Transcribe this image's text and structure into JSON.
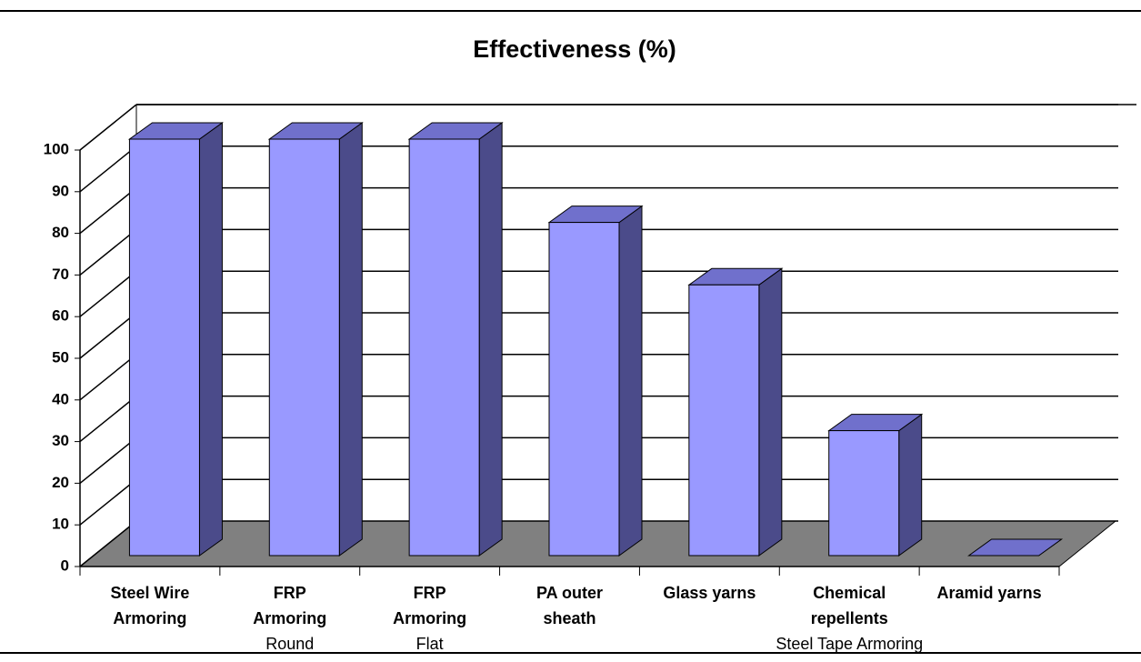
{
  "chart_data": {
    "type": "bar3d",
    "title": "Effectiveness (%)",
    "categories": [
      [
        "Steel Wire",
        "Armoring"
      ],
      [
        "FRP",
        "Armoring",
        "Round"
      ],
      [
        "FRP",
        "Armoring",
        "Flat"
      ],
      [
        "PA outer",
        "sheath"
      ],
      [
        "Glass yarns"
      ],
      [
        "Chemical",
        "repellents",
        "Steel Tape Armoring"
      ],
      [
        "Aramid yarns"
      ]
    ],
    "values": [
      100,
      100,
      100,
      80,
      65,
      30,
      0
    ],
    "color": "#9999ff",
    "ylim": [
      0,
      100
    ],
    "yticks": [
      0,
      10,
      20,
      30,
      40,
      50,
      60,
      70,
      80,
      90,
      100
    ],
    "grid": true
  }
}
